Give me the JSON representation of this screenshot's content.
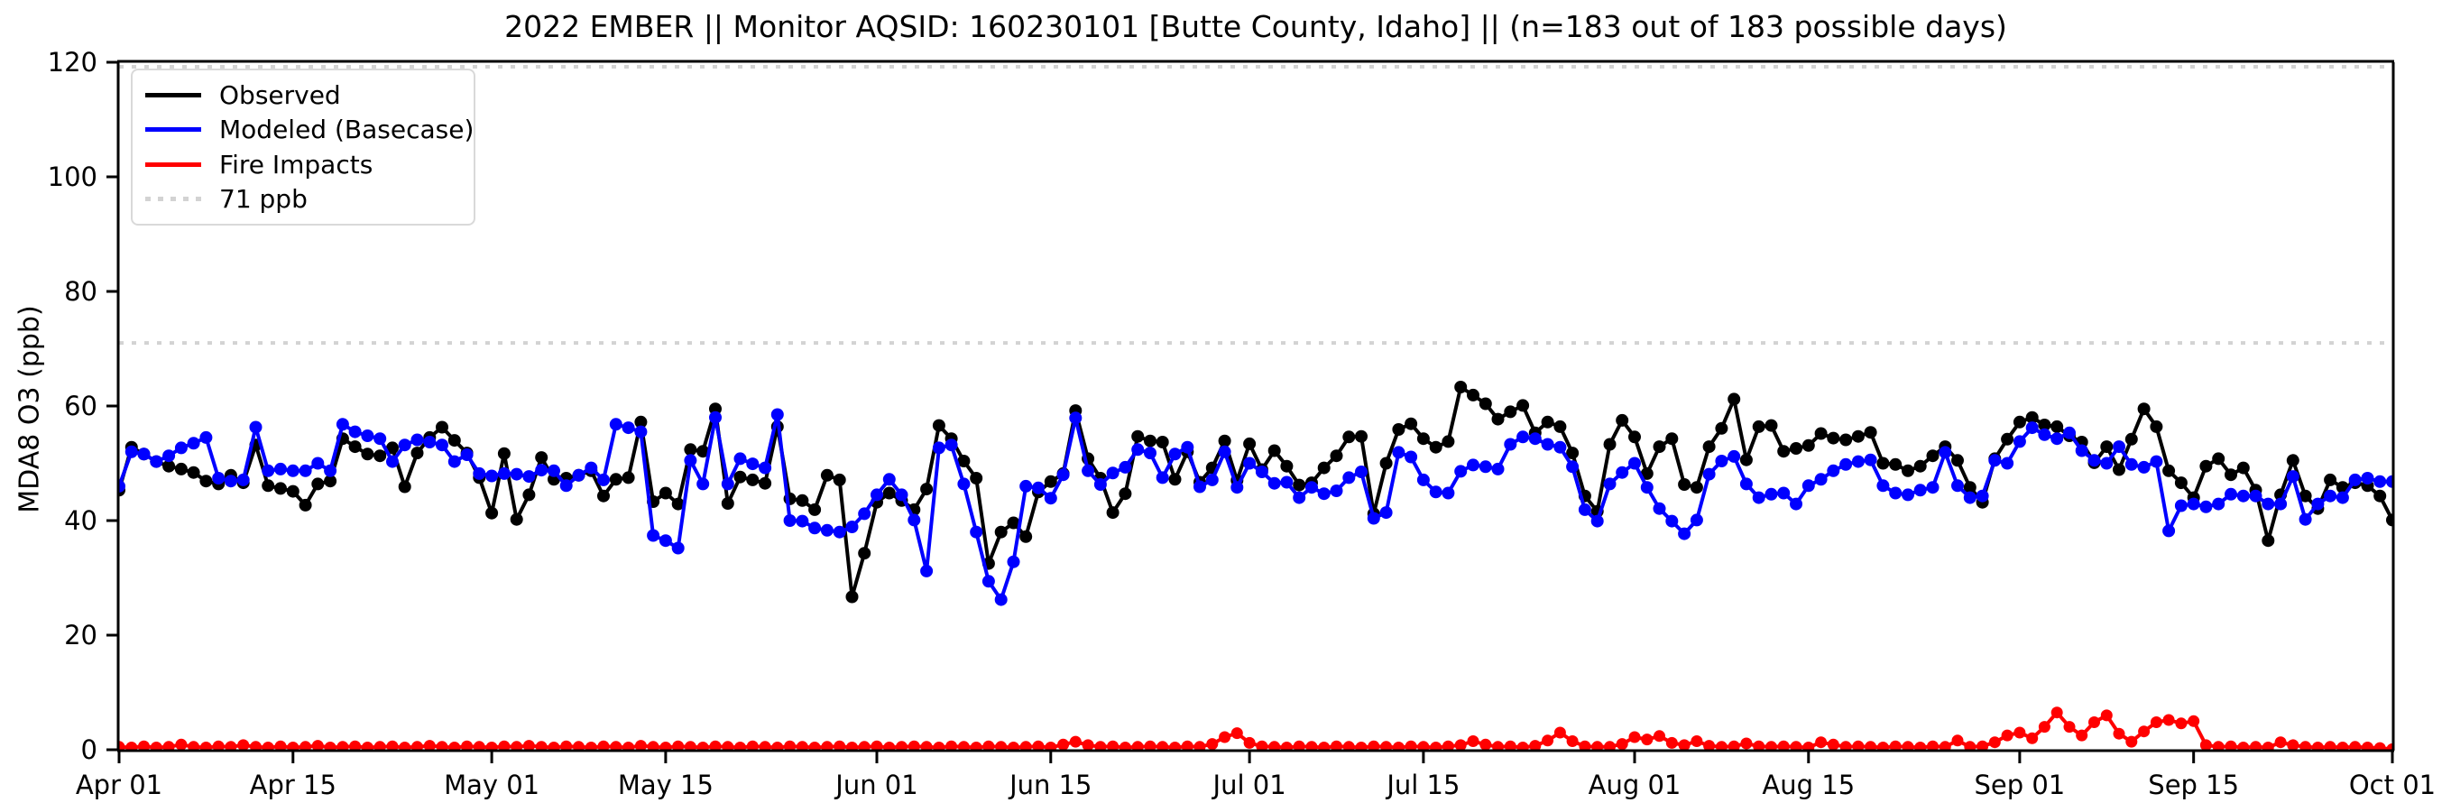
{
  "title": "2022 EMBER || Monitor AQSID: 160230101 [Butte County, Idaho] || (n=183 out of 183 possible days)",
  "legend": {
    "items": [
      {
        "label": "Observed",
        "color": "#000000",
        "style": "solid"
      },
      {
        "label": "Modeled (Basecase)",
        "color": "#0000ff",
        "style": "solid"
      },
      {
        "label": "Fire Impacts",
        "color": "#ff0000",
        "style": "solid"
      },
      {
        "label": "71 ppb",
        "color": "#d3d3d3",
        "style": "dotted"
      }
    ]
  },
  "colors": {
    "observed": "#000000",
    "modeled": "#0000ff",
    "fire": "#ff0000",
    "threshold_line": "#d3d3d3",
    "spine": "#000000"
  },
  "chart_data": {
    "type": "line",
    "title": "2022 EMBER || Monitor AQSID: 160230101 [Butte County, Idaho] || (n=183 out of 183 possible days)",
    "xlabel": "",
    "ylabel": "MDA8 O3 (ppb)",
    "ylim": [
      0,
      120
    ],
    "y_ticks": [
      0,
      20,
      40,
      60,
      80,
      100,
      120
    ],
    "x_start_date": "2022-04-01",
    "x_end_date": "2022-10-01",
    "n_points": 184,
    "x_tick_labels": [
      "Apr 01",
      "Apr 15",
      "May 01",
      "May 15",
      "Jun 01",
      "Jun 15",
      "Jul 01",
      "Jul 15",
      "Aug 01",
      "Aug 15",
      "Sep 01",
      "Sep 15",
      "Oct 01"
    ],
    "x_tick_days": [
      0,
      14,
      30,
      44,
      61,
      75,
      91,
      105,
      122,
      136,
      153,
      167,
      183
    ],
    "threshold_ppb": 71,
    "grid": false,
    "legend_position": "upper left",
    "series": [
      {
        "name": "Observed",
        "color": "#000000",
        "values": [
          45.3,
          52.8,
          51.6,
          50.3,
          49.5,
          49.0,
          48.4,
          46.9,
          46.4,
          47.9,
          46.6,
          53.2,
          46.1,
          45.6,
          45.1,
          42.7,
          46.4,
          46.9,
          54.3,
          52.9,
          51.6,
          51.3,
          52.7,
          45.9,
          51.8,
          54.5,
          56.3,
          54.0,
          51.8,
          47.5,
          41.3,
          51.7,
          40.2,
          44.5,
          51.0,
          47.2,
          47.4,
          47.9,
          48.7,
          44.3,
          47.2,
          47.5,
          57.2,
          43.3,
          44.8,
          42.9,
          52.4,
          52.1,
          59.5,
          43.0,
          47.6,
          47.1,
          46.5,
          56.4,
          43.8,
          43.5,
          41.9,
          47.9,
          47.1,
          26.7,
          34.3,
          43.2,
          44.8,
          43.5,
          41.9,
          45.5,
          56.6,
          54.3,
          50.4,
          47.4,
          32.5,
          38.0,
          39.6,
          37.2,
          45.0,
          46.8,
          48.2,
          59.2,
          50.8,
          47.4,
          41.4,
          44.7,
          54.7,
          53.9,
          53.7,
          47.2,
          52.0,
          46.7,
          49.2,
          53.9,
          47.0,
          53.4,
          48.9,
          52.2,
          49.5,
          46.2,
          46.6,
          49.2,
          51.3,
          54.6,
          54.7,
          41.2,
          50.0,
          55.9,
          56.9,
          54.3,
          52.8,
          53.8,
          63.3,
          61.9,
          60.4,
          57.7,
          59.0,
          60.1,
          55.3,
          57.2,
          56.4,
          51.8,
          44.3,
          41.6,
          53.3,
          57.5,
          54.6,
          48.2,
          52.9,
          54.3,
          46.3,
          45.8,
          52.9,
          56.1,
          61.2,
          50.6,
          56.4,
          56.6,
          52.1,
          52.6,
          53.1,
          55.2,
          54.4,
          54.1,
          54.7,
          55.4,
          50.0,
          49.8,
          48.7,
          49.5,
          51.3,
          52.9,
          50.5,
          45.8,
          43.2,
          50.8,
          54.2,
          57.2,
          58.0,
          56.7,
          56.4,
          54.8,
          53.7,
          50.1,
          52.9,
          48.9,
          54.2,
          59.5,
          56.4,
          48.7,
          46.6,
          44.0,
          49.5,
          50.8,
          48.0,
          49.2,
          45.3,
          36.5,
          44.5,
          50.5,
          44.3,
          42.1,
          47.1,
          45.8,
          46.6,
          46.1,
          44.3,
          40.1
        ]
      },
      {
        "name": "Modeled (Basecase)",
        "color": "#0000ff",
        "values": [
          46.0,
          52.0,
          51.6,
          50.3,
          51.3,
          52.7,
          53.5,
          54.5,
          47.4,
          46.9,
          47.1,
          56.3,
          48.7,
          49.0,
          48.7,
          48.7,
          50.0,
          48.7,
          56.8,
          55.5,
          54.8,
          54.3,
          50.3,
          53.2,
          54.1,
          53.7,
          53.2,
          50.3,
          51.5,
          48.2,
          47.8,
          48.2,
          48.1,
          47.7,
          48.8,
          48.7,
          46.1,
          47.9,
          49.2,
          47.1,
          56.8,
          56.2,
          55.5,
          37.4,
          36.5,
          35.2,
          50.5,
          46.4,
          58.0,
          46.4,
          50.8,
          49.9,
          49.2,
          58.5,
          40.0,
          39.9,
          38.7,
          38.3,
          38.0,
          38.9,
          41.2,
          44.5,
          47.2,
          44.5,
          40.1,
          31.2,
          52.7,
          53.2,
          46.4,
          38.0,
          29.4,
          26.2,
          32.8,
          46.0,
          45.7,
          43.9,
          48.0,
          57.9,
          48.7,
          46.3,
          48.3,
          49.3,
          52.4,
          51.8,
          47.5,
          51.6,
          52.8,
          45.9,
          47.1,
          52.0,
          45.8,
          50.0,
          48.5,
          46.5,
          46.7,
          44.0,
          45.8,
          44.7,
          45.2,
          47.5,
          48.5,
          40.4,
          41.4,
          51.9,
          51.1,
          47.1,
          45.0,
          44.8,
          48.6,
          49.7,
          49.4,
          49.0,
          53.3,
          54.6,
          54.3,
          53.3,
          52.8,
          49.4,
          41.9,
          39.9,
          46.4,
          48.4,
          50.0,
          45.8,
          42.1,
          39.9,
          37.7,
          40.1,
          48.1,
          50.4,
          51.2,
          46.4,
          44.0,
          44.6,
          44.8,
          42.9,
          46.1,
          47.2,
          48.7,
          49.8,
          50.3,
          50.6,
          46.1,
          44.8,
          44.5,
          45.3,
          45.8,
          51.9,
          46.1,
          44.0,
          44.3,
          50.5,
          50.0,
          53.8,
          56.2,
          55.0,
          54.3,
          55.3,
          52.2,
          50.5,
          50.0,
          52.9,
          49.8,
          49.3,
          50.3,
          38.2,
          42.6,
          42.9,
          42.4,
          42.9,
          44.6,
          44.3,
          44.3,
          42.9,
          42.9,
          47.7,
          40.2,
          42.9,
          44.3,
          44.0,
          47.1,
          47.4,
          46.8,
          46.8
        ]
      },
      {
        "name": "Fire Impacts",
        "color": "#ff0000",
        "values": [
          0.5,
          0.4,
          0.6,
          0.4,
          0.5,
          0.9,
          0.5,
          0.4,
          0.6,
          0.5,
          0.8,
          0.5,
          0.4,
          0.6,
          0.4,
          0.5,
          0.7,
          0.4,
          0.5,
          0.6,
          0.4,
          0.5,
          0.6,
          0.4,
          0.5,
          0.7,
          0.5,
          0.4,
          0.6,
          0.5,
          0.4,
          0.6,
          0.5,
          0.7,
          0.5,
          0.4,
          0.6,
          0.5,
          0.4,
          0.6,
          0.5,
          0.4,
          0.7,
          0.5,
          0.4,
          0.6,
          0.5,
          0.4,
          0.6,
          0.5,
          0.4,
          0.6,
          0.5,
          0.4,
          0.6,
          0.5,
          0.4,
          0.5,
          0.6,
          0.4,
          0.5,
          0.6,
          0.4,
          0.5,
          0.6,
          0.5,
          0.4,
          0.6,
          0.5,
          0.4,
          0.6,
          0.5,
          0.4,
          0.5,
          0.6,
          0.4,
          0.9,
          1.4,
          0.8,
          0.5,
          0.6,
          0.4,
          0.5,
          0.6,
          0.5,
          0.4,
          0.6,
          0.5,
          1.0,
          2.2,
          2.9,
          1.2,
          0.6,
          0.5,
          0.4,
          0.6,
          0.5,
          0.4,
          0.6,
          0.5,
          0.4,
          0.6,
          0.5,
          0.4,
          0.6,
          0.5,
          0.4,
          0.6,
          0.8,
          1.5,
          0.9,
          0.5,
          0.6,
          0.4,
          0.7,
          1.6,
          3.0,
          1.5,
          0.6,
          0.5,
          0.5,
          1.0,
          2.2,
          1.8,
          2.4,
          1.2,
          0.8,
          1.5,
          0.7,
          0.5,
          0.6,
          1.1,
          0.6,
          0.5,
          0.6,
          0.5,
          0.4,
          1.3,
          0.9,
          0.5,
          0.6,
          0.5,
          0.4,
          0.6,
          0.5,
          0.4,
          0.6,
          0.5,
          1.6,
          0.5,
          0.6,
          1.3,
          2.5,
          3.0,
          2.0,
          4.0,
          6.5,
          4.0,
          2.5,
          4.8,
          6.0,
          2.8,
          1.4,
          3.2,
          4.8,
          5.2,
          4.6,
          5.0,
          0.8,
          0.5,
          0.6,
          0.4,
          0.5,
          0.4,
          1.3,
          0.8,
          0.5,
          0.4,
          0.5,
          0.4,
          0.5,
          0.4,
          0.3,
          0.1
        ]
      }
    ]
  }
}
